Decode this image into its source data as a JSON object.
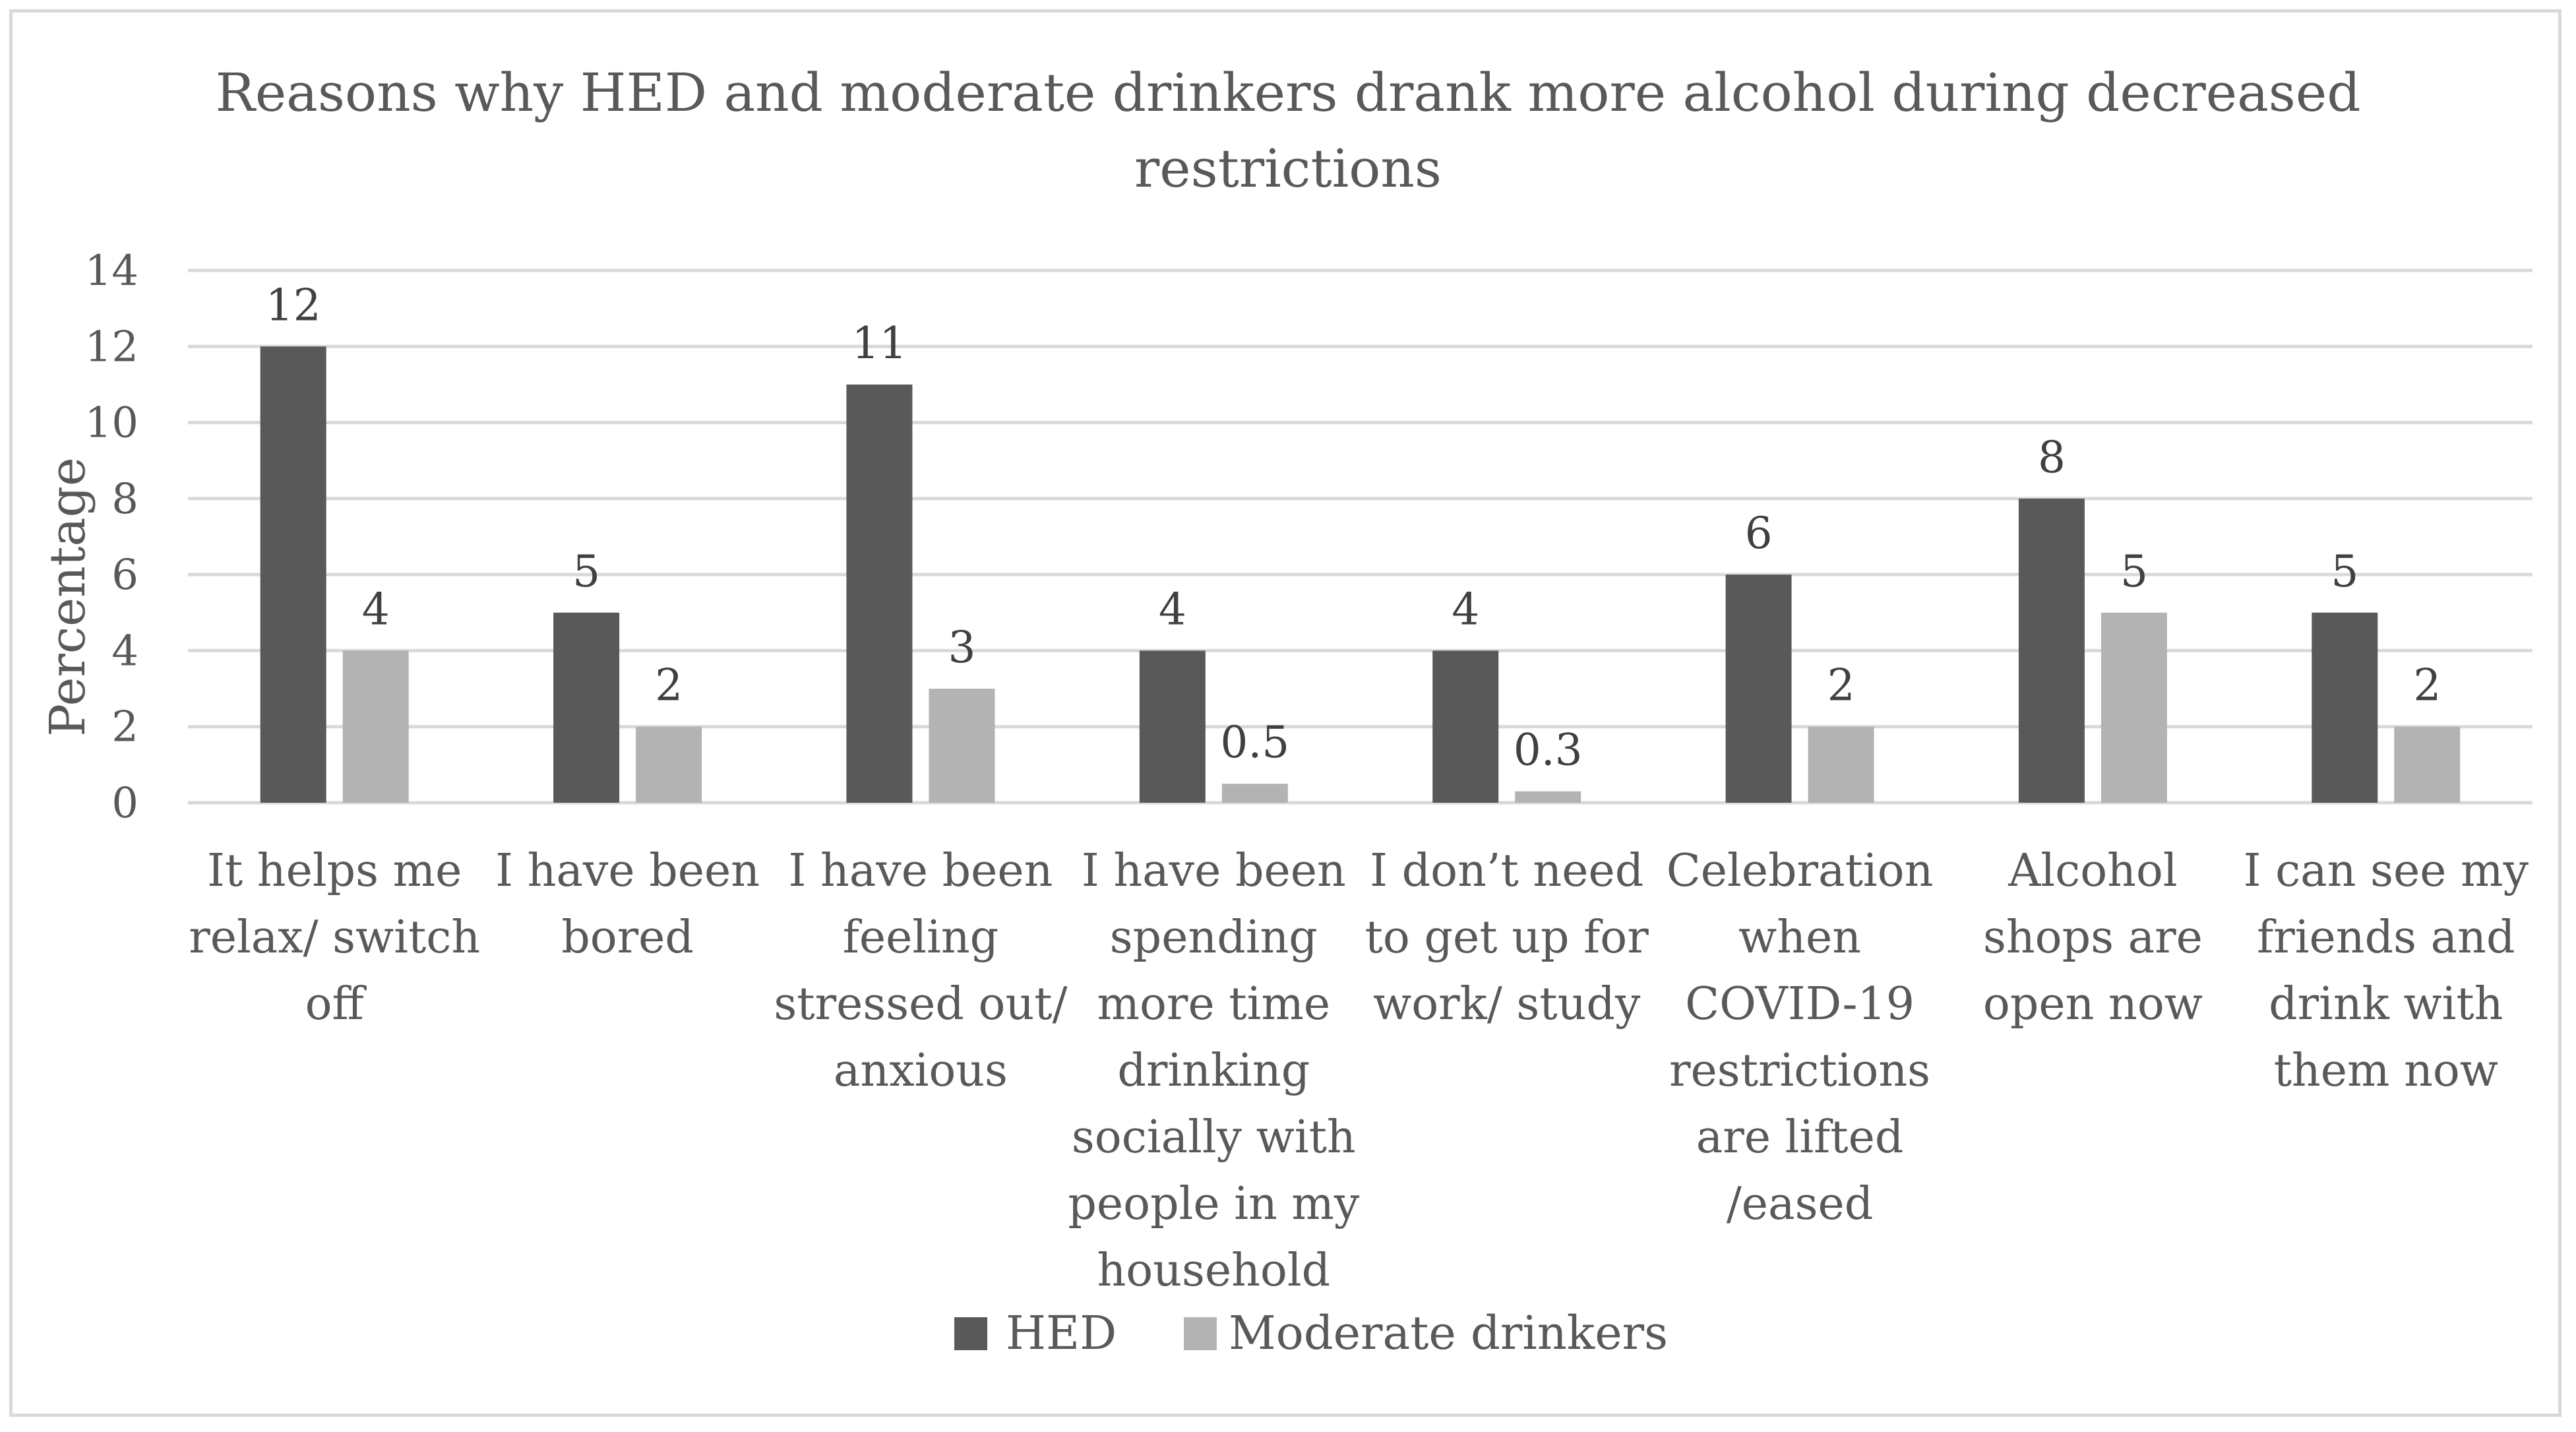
{
  "chart_data": {
    "type": "bar",
    "title": "Reasons why HED and moderate drinkers drank more alcohol during decreased restrictions",
    "title_lines": [
      "Reasons why HED and moderate drinkers drank more alcohol during decreased",
      "restrictions"
    ],
    "ylabel": "Percentage",
    "xlabel": "",
    "ylim": [
      0,
      14
    ],
    "yticks": [
      0,
      2,
      4,
      6,
      8,
      10,
      12,
      14
    ],
    "grid": true,
    "legend_position": "bottom",
    "categories": [
      "It helps me relax/ switch off",
      "I have been bored",
      "I have been feeling stressed out/ anxious",
      "I have been spending more time drinking socially with people in my household",
      "I don’t need to get up for work/ study",
      "Celebration when COVID-19 restrictions are lifted /eased",
      "Alcohol shops are open now",
      "I can see my friends and drink with them now"
    ],
    "category_lines": [
      [
        "It helps me",
        "relax/ switch",
        "off"
      ],
      [
        "I have been",
        "bored"
      ],
      [
        "I have been",
        "feeling",
        "stressed out/",
        "anxious"
      ],
      [
        "I have been",
        "spending",
        "more time",
        "drinking",
        "socially with",
        "people in my",
        "household"
      ],
      [
        "I don’t need",
        "to get up for",
        "work/ study"
      ],
      [
        "Celebration",
        "when",
        "COVID-19",
        "restrictions",
        "are lifted",
        "/eased"
      ],
      [
        "Alcohol",
        "shops are",
        "open now"
      ],
      [
        "I can see my",
        "friends and",
        "drink with",
        "them now"
      ]
    ],
    "series": [
      {
        "name": "HED",
        "color": "#595959",
        "values": [
          12,
          5,
          11,
          4,
          4,
          6,
          8,
          5
        ],
        "labels": [
          "12",
          "5",
          "11",
          "4",
          "4",
          "6",
          "8",
          "5"
        ]
      },
      {
        "name": "Moderate drinkers",
        "color": "#b3b3b3",
        "values": [
          4,
          2,
          3,
          0.5,
          0.3,
          2,
          5,
          2
        ],
        "labels": [
          "4",
          "2",
          "3",
          "0.5",
          "0.3",
          "2",
          "5",
          "2"
        ]
      }
    ]
  }
}
